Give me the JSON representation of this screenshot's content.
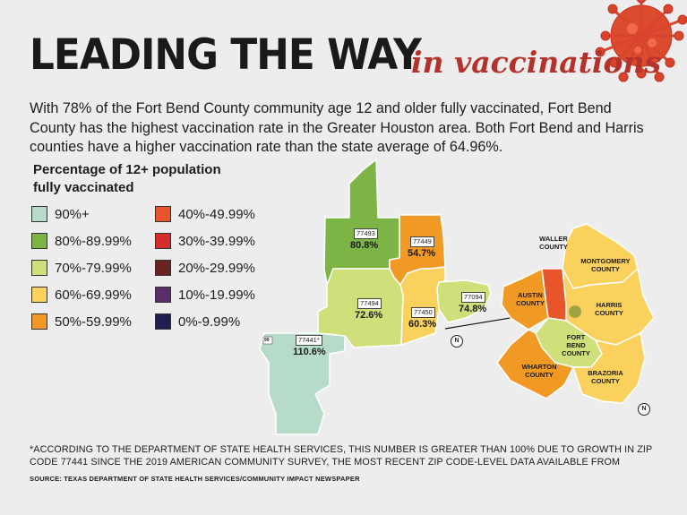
{
  "header": {
    "title": "LEADING THE WAY",
    "subtitle": "in vaccinations"
  },
  "intro": "With 78% of the Fort Bend County community age 12 and older fully vaccinated, Fort Bend County has the highest vaccination rate in the Greater Houston area. Both Fort Bend and Harris counties have a higher vaccination rate than the state average of 64.96%.",
  "legend": {
    "title": "Percentage of 12+ population fully vaccinated",
    "items": [
      {
        "label": "90%+",
        "color": "#b6dcc9"
      },
      {
        "label": "80%-89.99%",
        "color": "#7cb446"
      },
      {
        "label": "70%-79.99%",
        "color": "#cfe07b"
      },
      {
        "label": "60%-69.99%",
        "color": "#fbd15e"
      },
      {
        "label": "50%-59.99%",
        "color": "#f09a25"
      },
      {
        "label": "40%-49.99%",
        "color": "#e8552b"
      },
      {
        "label": "30%-39.99%",
        "color": "#d52d2d"
      },
      {
        "label": "20%-29.99%",
        "color": "#6a2420"
      },
      {
        "label": "10%-19.99%",
        "color": "#5a2d6b"
      },
      {
        "label": "0%-9.99%",
        "color": "#1e1f4f"
      }
    ]
  },
  "zip_codes": [
    {
      "zip": "77493",
      "value": "80.8%",
      "percent": 80.8
    },
    {
      "zip": "77449",
      "value": "54.7%",
      "percent": 54.7
    },
    {
      "zip": "77494",
      "value": "72.6%",
      "percent": 72.6
    },
    {
      "zip": "77450",
      "value": "60.3%",
      "percent": 60.3
    },
    {
      "zip": "77094",
      "value": "74.8%",
      "percent": 74.8
    },
    {
      "zip": "77441*",
      "value": "110.6%",
      "percent": 110.6
    }
  ],
  "counties": {
    "waller": "WALLER COUNTY",
    "montgomery": "MONTGOMERY COUNTY",
    "austin": "AUSTIN COUNTY",
    "harris": "HARRIS COUNTY",
    "fort_bend": "FORT BEND COUNTY",
    "wharton": "WHARTON COUNTY",
    "brazoria": "BRAZORIA COUNTY"
  },
  "map_marks": {
    "north": "N",
    "road": "99"
  },
  "footnote": "*ACCORDING TO THE DEPARTMENT OF STATE HEALTH SERVICES, THIS NUMBER IS GREATER THAN 100% DUE TO GROWTH IN ZIP CODE 77441 SINCE THE 2019 AMERICAN COMMUNITY SURVEY, THE MOST RECENT ZIP CODE-LEVEL DATA AVAILABLE FROM",
  "source": "SOURCE: TEXAS DEPARTMENT OF STATE HEALTH SERVICES/COMMUNITY IMPACT NEWSPAPER",
  "colors": {
    "accent": "#b3322b",
    "background": "#ededed"
  },
  "icons": [
    "virus-icon",
    "north-arrow-icon"
  ]
}
